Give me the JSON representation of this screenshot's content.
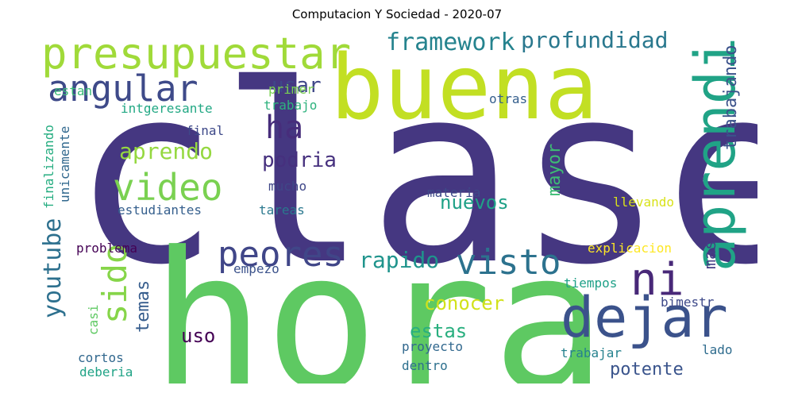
{
  "title": "Computacion Y Sociedad - 2020-07",
  "words": [
    {
      "text": "clase",
      "color": "#453781"
    },
    {
      "text": "hora",
      "color": "#5ec962"
    },
    {
      "text": "buena",
      "color": "#c2df23"
    },
    {
      "text": "aprendi",
      "color": "#20a386"
    },
    {
      "text": "presupuestar",
      "color": "#a0da39"
    },
    {
      "text": "dejar",
      "color": "#3b528b"
    },
    {
      "text": "angular",
      "color": "#3e4a89"
    },
    {
      "text": "video",
      "color": "#7ad151"
    },
    {
      "text": "visto",
      "color": "#2c728e"
    },
    {
      "text": "peores",
      "color": "#404688"
    },
    {
      "text": "ni",
      "color": "#482878"
    },
    {
      "text": "youtube",
      "color": "#2d708e"
    },
    {
      "text": "sido",
      "color": "#86d549"
    },
    {
      "text": "ha",
      "color": "#472d7b"
    },
    {
      "text": "framework",
      "color": "#25838e"
    },
    {
      "text": "profundidad",
      "color": "#2a788e"
    },
    {
      "text": "trabajando",
      "color": "#3b528b"
    },
    {
      "text": "aprendo",
      "color": "#95d840"
    },
    {
      "text": "rapido",
      "color": "#1f948c"
    },
    {
      "text": "podria",
      "color": "#46307e"
    },
    {
      "text": "nuevos",
      "color": "#1fa187"
    },
    {
      "text": "mayor",
      "color": "#3dbc74"
    },
    {
      "text": "usar",
      "color": "#3f4788"
    },
    {
      "text": "conocer",
      "color": "#d2e21b"
    },
    {
      "text": "estas",
      "color": "#29af7f"
    },
    {
      "text": "temas",
      "color": "#365d8d"
    },
    {
      "text": "mas",
      "color": "#433e85"
    },
    {
      "text": "uso",
      "color": "#440154"
    },
    {
      "text": "potente",
      "color": "#3a548c"
    },
    {
      "text": "primer",
      "color": "#7ad151"
    },
    {
      "text": "estan",
      "color": "#38b977"
    },
    {
      "text": "trabajo",
      "color": "#2db27d"
    },
    {
      "text": "intgeresante",
      "color": "#22a884"
    },
    {
      "text": "otras",
      "color": "#355f8d"
    },
    {
      "text": "final",
      "color": "#3e4989"
    },
    {
      "text": "mucho",
      "color": "#3f4788"
    },
    {
      "text": "materia",
      "color": "#3e4a89"
    },
    {
      "text": "estudiantes",
      "color": "#355f8d"
    },
    {
      "text": "tareas",
      "color": "#2a788e"
    },
    {
      "text": "llevando",
      "color": "#d8e219"
    },
    {
      "text": "finalizando",
      "color": "#26ad81"
    },
    {
      "text": "unicamente",
      "color": "#31688e"
    },
    {
      "text": "problema",
      "color": "#440154"
    },
    {
      "text": "empezo",
      "color": "#3b528b"
    },
    {
      "text": "explicacion",
      "color": "#fde725"
    },
    {
      "text": "tiempos",
      "color": "#1fa188"
    },
    {
      "text": "bimestr",
      "color": "#3e4989"
    },
    {
      "text": "casi",
      "color": "#5ec962"
    },
    {
      "text": "cortos",
      "color": "#31688e"
    },
    {
      "text": "deberia",
      "color": "#20a386"
    },
    {
      "text": "proyecto",
      "color": "#31688e"
    },
    {
      "text": "dentro",
      "color": "#2d708e"
    },
    {
      "text": "trabajar",
      "color": "#26828e"
    },
    {
      "text": "lado",
      "color": "#2f6c8e"
    }
  ]
}
